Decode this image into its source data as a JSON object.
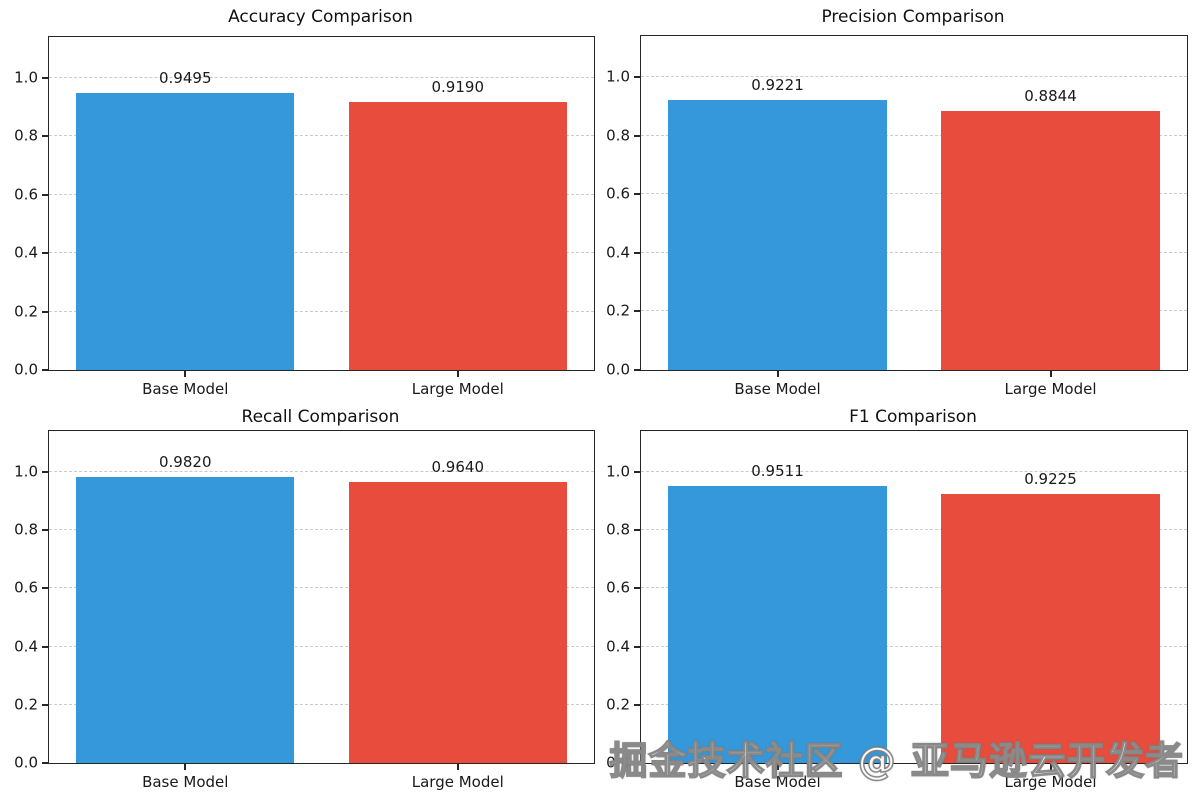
{
  "figure": {
    "background": "#ffffff",
    "text_color": "#1a1a1a",
    "spine_color": "#262626",
    "gridline_color": "#cbcbcb"
  },
  "watermark": {
    "text": "掘金技术社区 @ 亚马逊云开发者"
  },
  "chart_data": [
    {
      "type": "bar",
      "title": "Accuracy Comparison",
      "categories": [
        "Base Model",
        "Large Model"
      ],
      "values": [
        0.9495,
        0.919
      ],
      "value_labels": [
        "0.9495",
        "0.9190"
      ],
      "bar_colors": [
        "#3498db",
        "#e74c3c"
      ],
      "xlabel": "",
      "ylabel": "",
      "ylim": [
        0,
        1.14
      ],
      "yticks": [
        0.0,
        0.2,
        0.4,
        0.6,
        0.8,
        1.0
      ],
      "ytick_labels": [
        "0.0",
        "0.2",
        "0.4",
        "0.6",
        "0.8",
        "1.0"
      ],
      "grid": "horizontal-dashed",
      "legend_position": "none"
    },
    {
      "type": "bar",
      "title": "Precision Comparison",
      "categories": [
        "Base Model",
        "Large Model"
      ],
      "values": [
        0.9221,
        0.8844
      ],
      "value_labels": [
        "0.9221",
        "0.8844"
      ],
      "bar_colors": [
        "#3498db",
        "#e74c3c"
      ],
      "xlabel": "",
      "ylabel": "",
      "ylim": [
        0,
        1.14
      ],
      "yticks": [
        0.0,
        0.2,
        0.4,
        0.6,
        0.8,
        1.0
      ],
      "ytick_labels": [
        "0.0",
        "0.2",
        "0.4",
        "0.6",
        "0.8",
        "1.0"
      ],
      "grid": "horizontal-dashed",
      "legend_position": "none"
    },
    {
      "type": "bar",
      "title": "Recall Comparison",
      "categories": [
        "Base Model",
        "Large Model"
      ],
      "values": [
        0.982,
        0.964
      ],
      "value_labels": [
        "0.9820",
        "0.9640"
      ],
      "bar_colors": [
        "#3498db",
        "#e74c3c"
      ],
      "xlabel": "",
      "ylabel": "",
      "ylim": [
        0,
        1.14
      ],
      "yticks": [
        0.0,
        0.2,
        0.4,
        0.6,
        0.8,
        1.0
      ],
      "ytick_labels": [
        "0.0",
        "0.2",
        "0.4",
        "0.6",
        "0.8",
        "1.0"
      ],
      "grid": "horizontal-dashed",
      "legend_position": "none"
    },
    {
      "type": "bar",
      "title": "F1 Comparison",
      "categories": [
        "Base Model",
        "Large Model"
      ],
      "values": [
        0.9511,
        0.9225
      ],
      "value_labels": [
        "0.9511",
        "0.9225"
      ],
      "bar_colors": [
        "#3498db",
        "#e74c3c"
      ],
      "xlabel": "",
      "ylabel": "",
      "ylim": [
        0,
        1.14
      ],
      "yticks": [
        0.0,
        0.2,
        0.4,
        0.6,
        0.8,
        1.0
      ],
      "ytick_labels": [
        "0.0",
        "0.2",
        "0.4",
        "0.6",
        "0.8",
        "1.0"
      ],
      "grid": "horizontal-dashed",
      "legend_position": "none"
    }
  ]
}
